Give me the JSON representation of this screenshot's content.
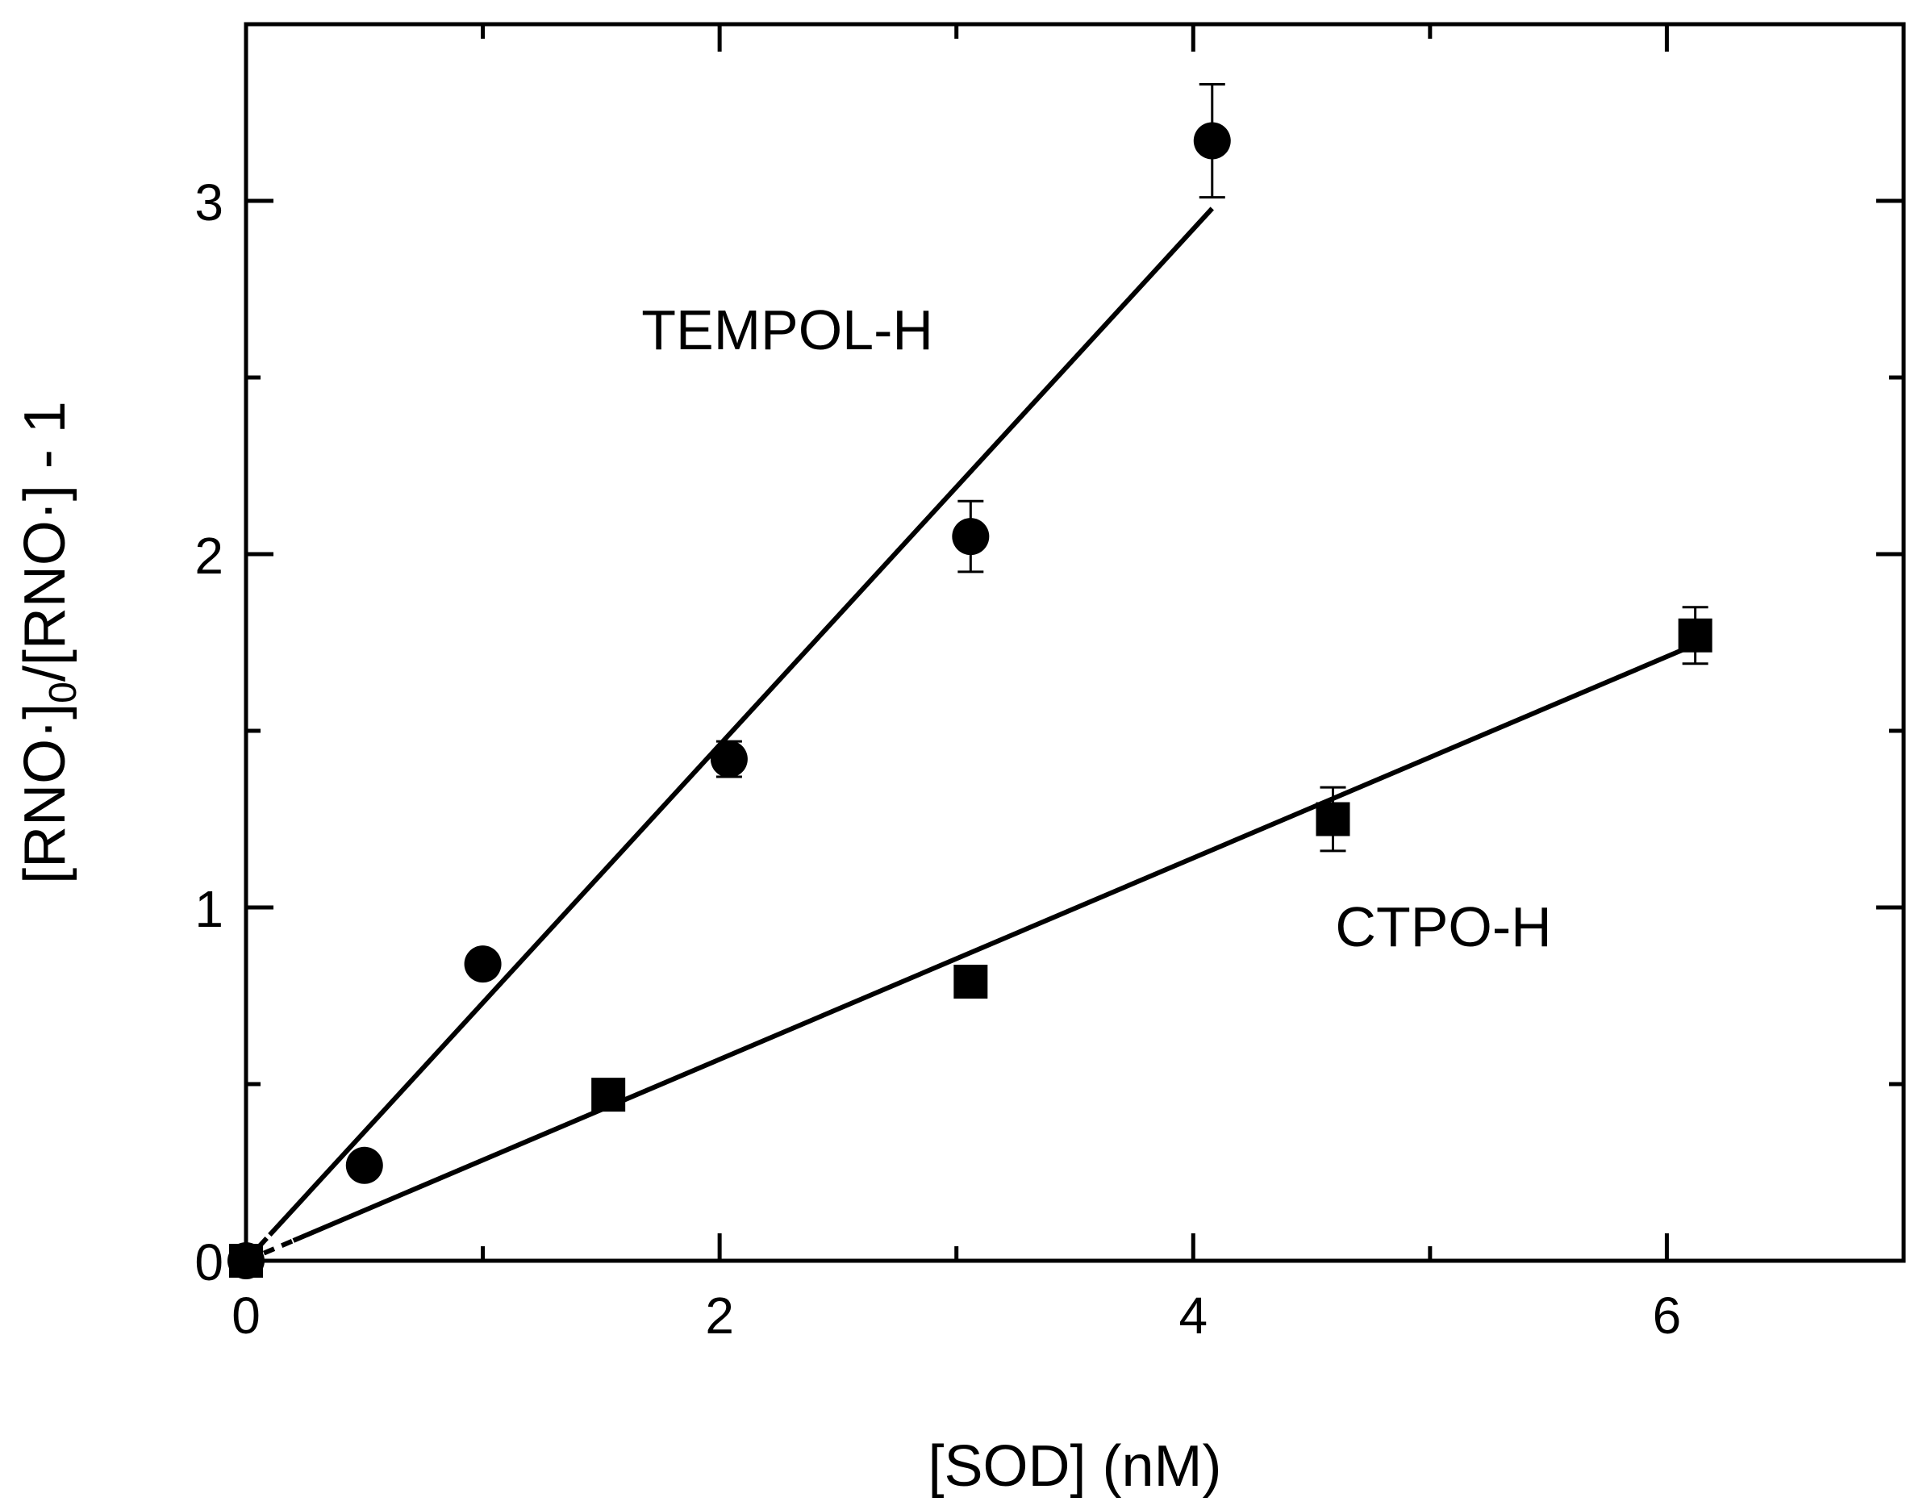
{
  "chart_data": {
    "type": "scatter",
    "xlabel": "[SOD] (nM)",
    "ylabel": {
      "parts": [
        "[RNO·]",
        "0",
        "/[RNO·] - 1"
      ]
    },
    "xlim": [
      0,
      7
    ],
    "ylim": [
      0,
      3.5
    ],
    "x_major_ticks": [
      0,
      2,
      4,
      6
    ],
    "x_minor_ticks": [
      1,
      3,
      5,
      7
    ],
    "y_major_ticks": [
      0,
      1,
      2,
      3
    ],
    "y_minor_ticks": [
      0.5,
      1.5,
      2.5
    ],
    "x_tick_labels": [
      "0",
      "2",
      "4",
      "6"
    ],
    "y_tick_labels": [
      "0",
      "1",
      "2",
      "3"
    ],
    "grid": false,
    "legend": "none",
    "series": [
      {
        "name": "TEMPOL-H",
        "marker": "circle",
        "points": [
          {
            "x": 0.0,
            "y": 0.0,
            "err": 0
          },
          {
            "x": 0.5,
            "y": 0.27,
            "err": 0
          },
          {
            "x": 1.0,
            "y": 0.84,
            "err": 0
          },
          {
            "x": 2.04,
            "y": 1.42,
            "err": 0.05
          },
          {
            "x": 3.06,
            "y": 2.05,
            "err": 0.1
          },
          {
            "x": 4.08,
            "y": 3.17,
            "err": 0.16
          }
        ],
        "fit": {
          "slope": 0.73,
          "intercept": 0.0,
          "x_start": 0.1,
          "x_end": 4.08,
          "dashed_from": 0.0,
          "dashed_to": 0.1
        }
      },
      {
        "name": "CTPO-H",
        "marker": "square",
        "points": [
          {
            "x": 0.0,
            "y": 0.0,
            "err": 0
          },
          {
            "x": 1.53,
            "y": 0.47,
            "err": 0
          },
          {
            "x": 3.06,
            "y": 0.79,
            "err": 0
          },
          {
            "x": 4.59,
            "y": 1.25,
            "err": 0.09
          },
          {
            "x": 6.12,
            "y": 1.77,
            "err": 0.08
          }
        ],
        "fit": {
          "slope": 0.285,
          "intercept": 0.0,
          "x_start": 0.2,
          "x_end": 6.12,
          "dashed_from": 0.0,
          "dashed_to": 0.2
        }
      }
    ],
    "annotations": [
      {
        "text": "TEMPOL-H",
        "x": 1.67,
        "y": 2.58
      },
      {
        "text": "CTPO-H",
        "x": 4.6,
        "y": 0.89
      }
    ]
  }
}
